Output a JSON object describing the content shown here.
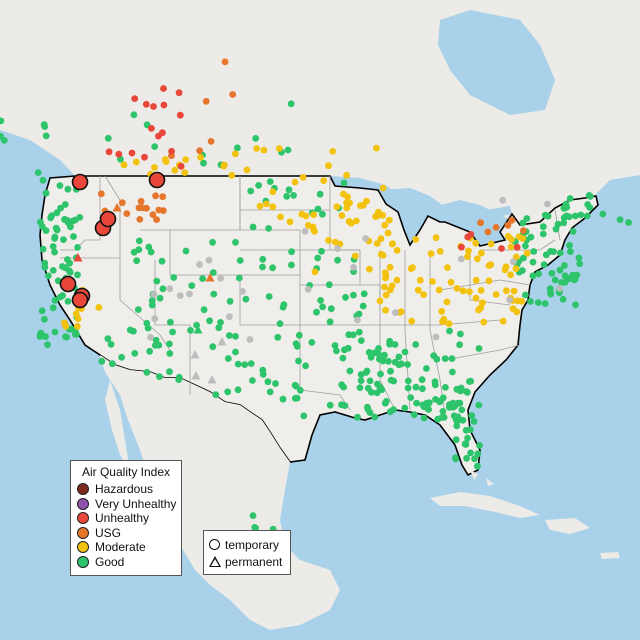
{
  "legend": {
    "title": "Air Quality Index",
    "items": [
      {
        "label": "Hazardous",
        "color": "#7e2a1e"
      },
      {
        "label": "Very Unhealthy",
        "color": "#8e54a9"
      },
      {
        "label": "Unhealthy",
        "color": "#e8473a"
      },
      {
        "label": "USG",
        "color": "#e5762b"
      },
      {
        "label": "Moderate",
        "color": "#f3c20e"
      },
      {
        "label": "Good",
        "color": "#2dc46b"
      }
    ]
  },
  "shape_legend": {
    "items": [
      {
        "label": "temporary",
        "shape": "circle"
      },
      {
        "label": "permanent",
        "shape": "triangle"
      }
    ]
  },
  "colors": {
    "water": "#a9d1e9",
    "land": "#ecebe7",
    "us_land": "#f0eeea",
    "border": "#000000",
    "state_lines": "#9e9e9e",
    "no_data": "#bdbdbd"
  }
}
